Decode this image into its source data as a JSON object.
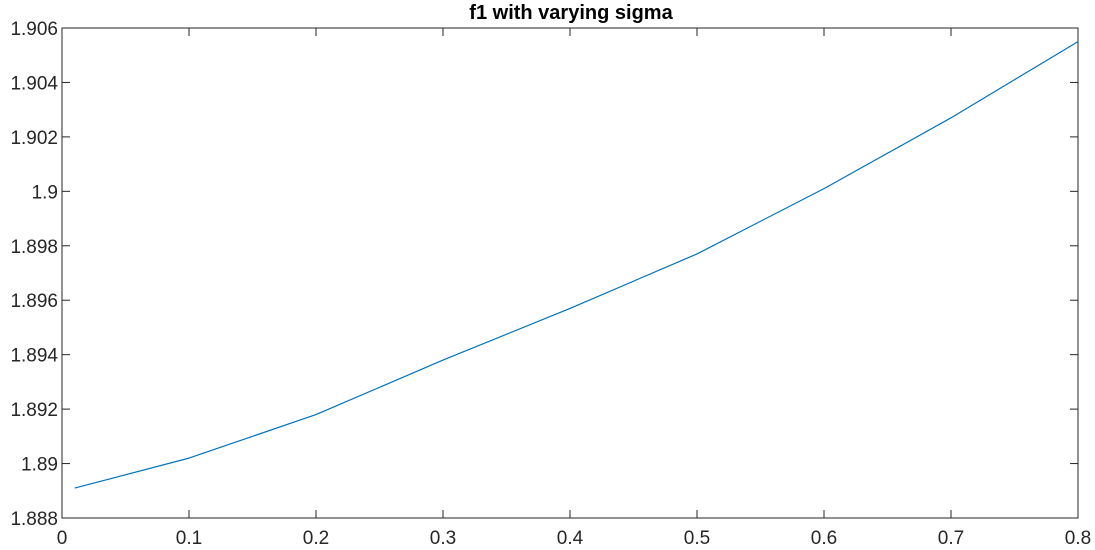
{
  "chart_data": {
    "type": "line",
    "title": "f1 with varying sigma",
    "xlabel": "",
    "ylabel": "",
    "xlim": [
      0,
      0.8
    ],
    "ylim": [
      1.888,
      1.906
    ],
    "xticks": [
      0,
      0.1,
      0.2,
      0.3,
      0.4,
      0.5,
      0.6,
      0.7,
      0.8
    ],
    "xtick_labels": [
      "0",
      "0.1",
      "0.2",
      "0.3",
      "0.4",
      "0.5",
      "0.6",
      "0.7",
      "0.8"
    ],
    "yticks": [
      1.888,
      1.89,
      1.892,
      1.894,
      1.896,
      1.898,
      1.9,
      1.902,
      1.904,
      1.906
    ],
    "ytick_labels": [
      "1.888",
      "1.89",
      "1.892",
      "1.894",
      "1.896",
      "1.898",
      "1.9",
      "1.902",
      "1.904",
      "1.906"
    ],
    "grid": false,
    "series": [
      {
        "color": "#0072BD",
        "x": [
          0.01,
          0.1,
          0.2,
          0.3,
          0.4,
          0.5,
          0.6,
          0.7,
          0.8
        ],
        "y": [
          1.8891,
          1.8902,
          1.8918,
          1.8938,
          1.8957,
          1.8977,
          1.9001,
          1.9027,
          1.9055
        ]
      }
    ]
  }
}
